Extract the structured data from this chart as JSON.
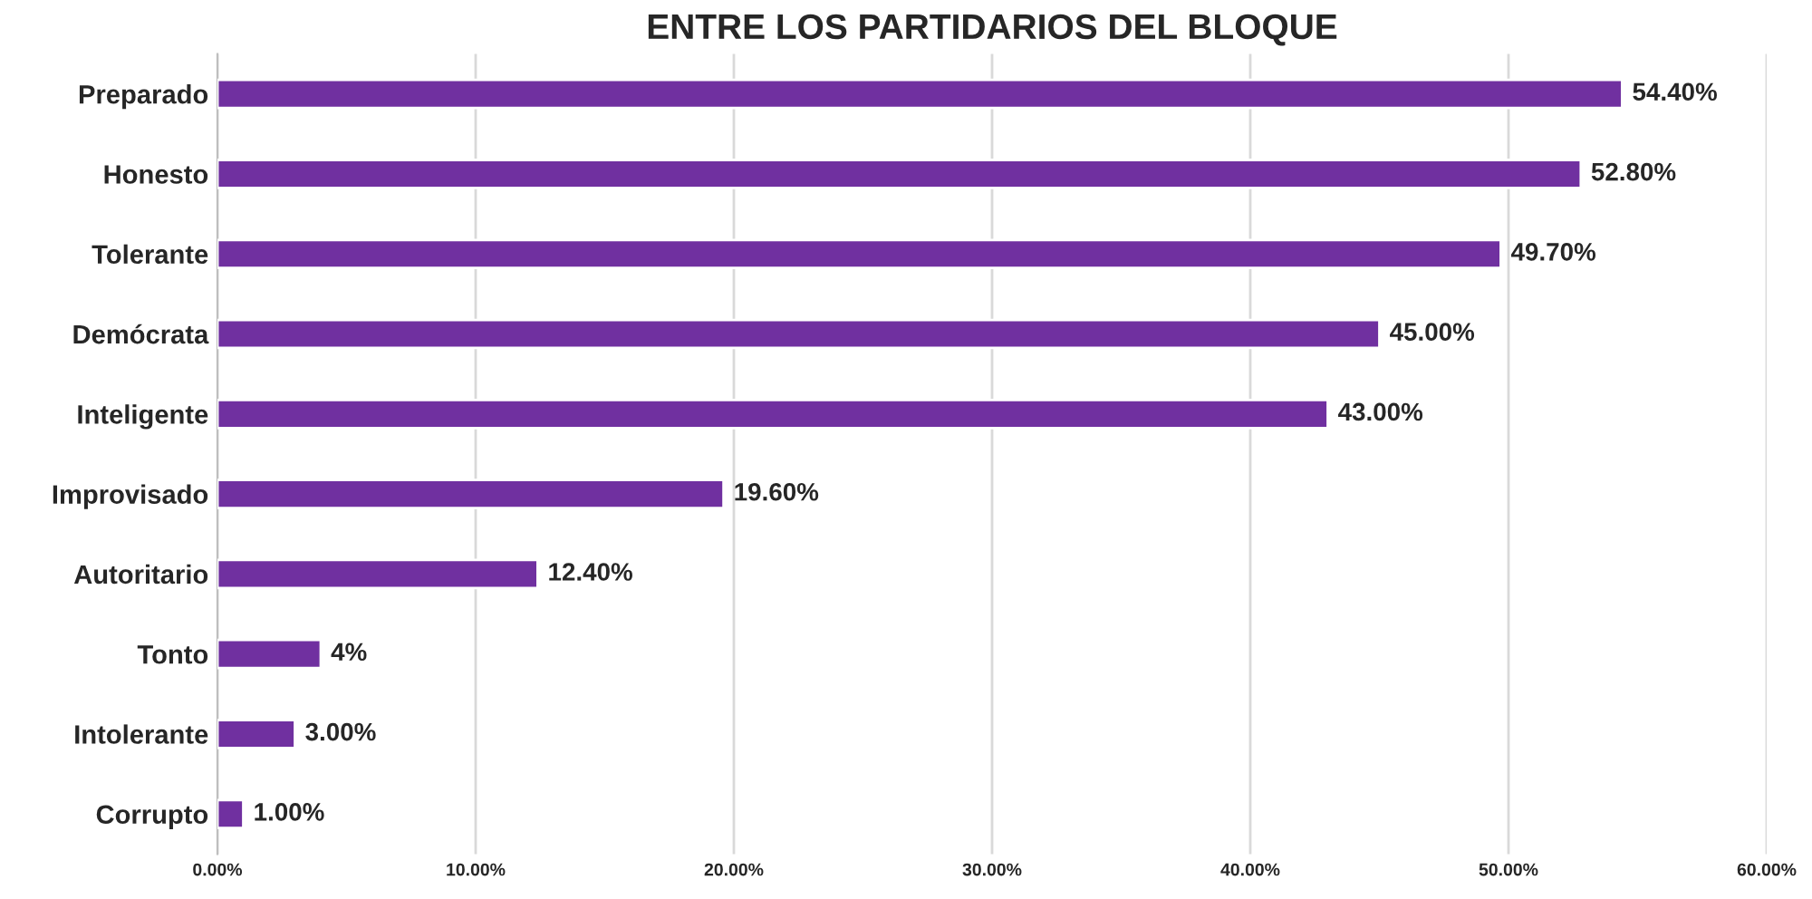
{
  "chart_data": {
    "type": "bar",
    "orientation": "horizontal",
    "title": "ENTRE LOS PARTIDARIOS DEL BLOQUE",
    "categories": [
      "Preparado",
      "Honesto",
      "Tolerante",
      "Demócrata",
      "Inteligente",
      "Improvisado",
      "Autoritario",
      "Tonto",
      "Intolerante",
      "Corrupto"
    ],
    "values": [
      54.4,
      52.8,
      49.7,
      45.0,
      43.0,
      19.6,
      12.4,
      4,
      3.0,
      1.0
    ],
    "value_labels": [
      "54.40%",
      "52.80%",
      "49.70%",
      "45.00%",
      "43.00%",
      "19.60%",
      "12.40%",
      "4%",
      "3.00%",
      "1.00%"
    ],
    "color": "#7030a0",
    "xlim": [
      0,
      60
    ],
    "xticks": [
      {
        "value": 0,
        "label": "0.00%"
      },
      {
        "value": 10,
        "label": "10.00%"
      },
      {
        "value": 20,
        "label": "20.00%"
      },
      {
        "value": 30,
        "label": "30.00%"
      },
      {
        "value": 40,
        "label": "40.00%"
      },
      {
        "value": 50,
        "label": "50.00%"
      },
      {
        "value": 60,
        "label": "60.00%"
      }
    ],
    "grid": "x"
  }
}
